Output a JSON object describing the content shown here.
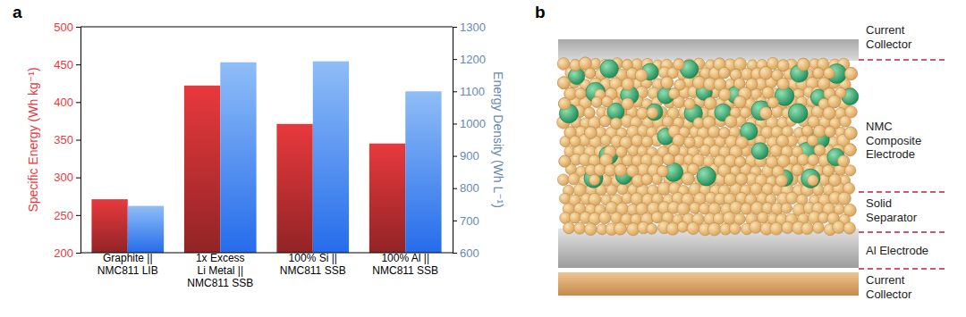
{
  "chart_data": {
    "type": "bar",
    "title": "a",
    "categories": [
      "Graphite ||\nNMC811 LIB",
      "1x Excess\nLi Metal ||\nNMC811 SSB",
      "100% Si ||\nNMC811 SSB",
      "100% Al ||\nNMC811 SSB"
    ],
    "ylabel": "Specific Energy (Wh kg⁻¹)",
    "y2label": "Energy Density (Wh L⁻¹)",
    "series": [
      {
        "color": "#e8393d",
        "values": [
          271,
          422,
          371,
          345
        ]
      },
      {
        "color": "#8fbdf6",
        "values": [
          745,
          1190,
          1193,
          1100
        ],
        "axis": "y2"
      }
    ],
    "ylim": [
      200,
      500
    ],
    "yticks": [
      200,
      250,
      300,
      350,
      400,
      450,
      500
    ],
    "y2lim": [
      600,
      1300
    ],
    "y2ticks": [
      600,
      700,
      800,
      900,
      1000,
      1100,
      1200,
      1300
    ],
    "grid": false
  },
  "diagram": {
    "label": "b",
    "layers": [
      {
        "label": "Current\nCollector"
      },
      {
        "label": "NMC\nComposite\nElectrode"
      },
      {
        "label": "Solid\nSeparator"
      },
      {
        "label": "Al Electrode"
      },
      {
        "label": "Current\nCollector"
      }
    ]
  }
}
